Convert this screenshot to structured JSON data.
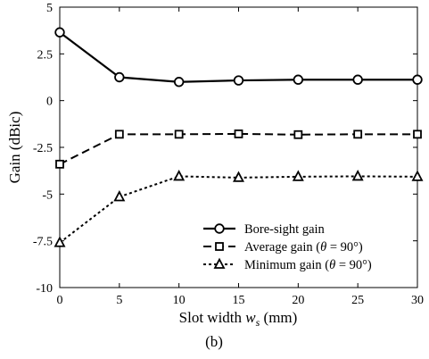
{
  "chart_data": {
    "type": "line",
    "x": [
      0,
      5,
      10,
      15,
      20,
      25,
      30
    ],
    "xticks": [
      "0",
      "5",
      "10",
      "15",
      "20",
      "25",
      "30"
    ],
    "yticks": [
      "5",
      "2.5",
      "0",
      "-2.5",
      "-5",
      "-7.5",
      "-10"
    ],
    "xlim": [
      0,
      30
    ],
    "ylim": [
      -10,
      5
    ],
    "xlabel": {
      "pre": "Slot width ",
      "var": "w",
      "sub": "s",
      "post": " (mm)"
    },
    "ylabel": "Gain (dBic)",
    "caption": "(b)",
    "legend_position": "bottom-right",
    "grid": false,
    "series": [
      {
        "name": "Bore-sight gain",
        "legend_pre": "Bore-sight gain",
        "legend_var": "",
        "legend_post": "",
        "values": [
          3.65,
          1.25,
          1.0,
          1.08,
          1.12,
          1.12,
          1.12
        ],
        "marker": "circle",
        "dash": "",
        "width": 2.2,
        "color": "#000000"
      },
      {
        "name": "Average gain (θ = 90°)",
        "legend_pre": "Average gain (",
        "legend_var": "θ",
        "legend_post": " = 90°)",
        "values": [
          -3.4,
          -1.8,
          -1.8,
          -1.78,
          -1.82,
          -1.8,
          -1.8
        ],
        "marker": "square",
        "dash": "9,5",
        "width": 2.0,
        "color": "#000000"
      },
      {
        "name": "Minimum gain (θ = 90°)",
        "legend_pre": "Minimum gain (",
        "legend_var": "θ",
        "legend_post": " = 90°)",
        "values": [
          -7.6,
          -5.15,
          -4.05,
          -4.12,
          -4.07,
          -4.05,
          -4.07
        ],
        "marker": "triangle",
        "dash": "3,3",
        "width": 2.0,
        "color": "#000000"
      }
    ]
  }
}
